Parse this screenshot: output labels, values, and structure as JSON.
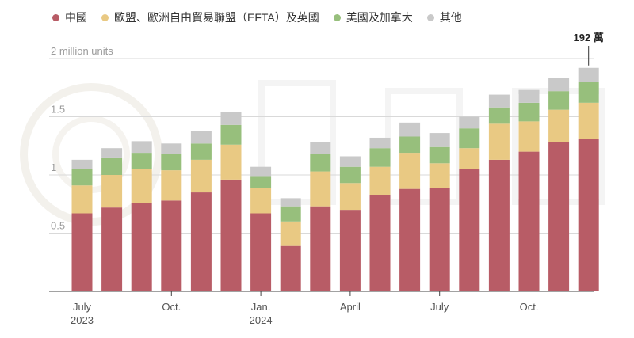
{
  "legend": [
    {
      "label": "中國",
      "color": "#b85c66"
    },
    {
      "label": "歐盟、歐洲自由貿易聯盟（EFTA）及英國",
      "color": "#e9c983"
    },
    {
      "label": "美國及加拿大",
      "color": "#97bf7c"
    },
    {
      "label": "其他",
      "color": "#c9c9c9"
    }
  ],
  "chart_data": {
    "type": "bar",
    "stacked": true,
    "ylabel": "",
    "ylim": [
      0,
      2
    ],
    "yticks": [
      {
        "value": 0.5,
        "label": "0.5"
      },
      {
        "value": 1,
        "label": "1"
      },
      {
        "value": 1.5,
        "label": "1.5"
      },
      {
        "value": 2,
        "label": "2 million units"
      }
    ],
    "xticks": [
      {
        "index": 0,
        "line1": "July",
        "line2": "2023"
      },
      {
        "index": 3,
        "line1": "Oct.",
        "line2": ""
      },
      {
        "index": 6,
        "line1": "Jan.",
        "line2": "2024"
      },
      {
        "index": 9,
        "line1": "April",
        "line2": ""
      },
      {
        "index": 12,
        "line1": "July",
        "line2": ""
      },
      {
        "index": 15,
        "line1": "Oct.",
        "line2": ""
      }
    ],
    "series": [
      {
        "name": "中國",
        "color": "#b85c66",
        "values": [
          0.67,
          0.72,
          0.76,
          0.78,
          0.85,
          0.96,
          0.67,
          0.39,
          0.73,
          0.7,
          0.83,
          0.88,
          0.89,
          1.05,
          1.13,
          1.2,
          1.28,
          1.31
        ]
      },
      {
        "name": "歐盟、歐洲自由貿易聯盟（EFTA）及英國",
        "color": "#e9c983",
        "values": [
          0.24,
          0.28,
          0.29,
          0.26,
          0.28,
          0.3,
          0.22,
          0.21,
          0.3,
          0.23,
          0.24,
          0.31,
          0.21,
          0.18,
          0.31,
          0.26,
          0.28,
          0.31
        ]
      },
      {
        "name": "美國及加拿大",
        "color": "#97bf7c",
        "values": [
          0.14,
          0.15,
          0.14,
          0.14,
          0.14,
          0.17,
          0.1,
          0.13,
          0.15,
          0.14,
          0.16,
          0.14,
          0.14,
          0.17,
          0.14,
          0.16,
          0.16,
          0.18
        ]
      },
      {
        "name": "其他",
        "color": "#c9c9c9",
        "values": [
          0.08,
          0.08,
          0.1,
          0.09,
          0.11,
          0.11,
          0.08,
          0.07,
          0.1,
          0.09,
          0.09,
          0.12,
          0.12,
          0.1,
          0.11,
          0.11,
          0.11,
          0.12
        ]
      }
    ],
    "annotation": {
      "index": 17,
      "text": "192 萬"
    },
    "grid": true
  }
}
